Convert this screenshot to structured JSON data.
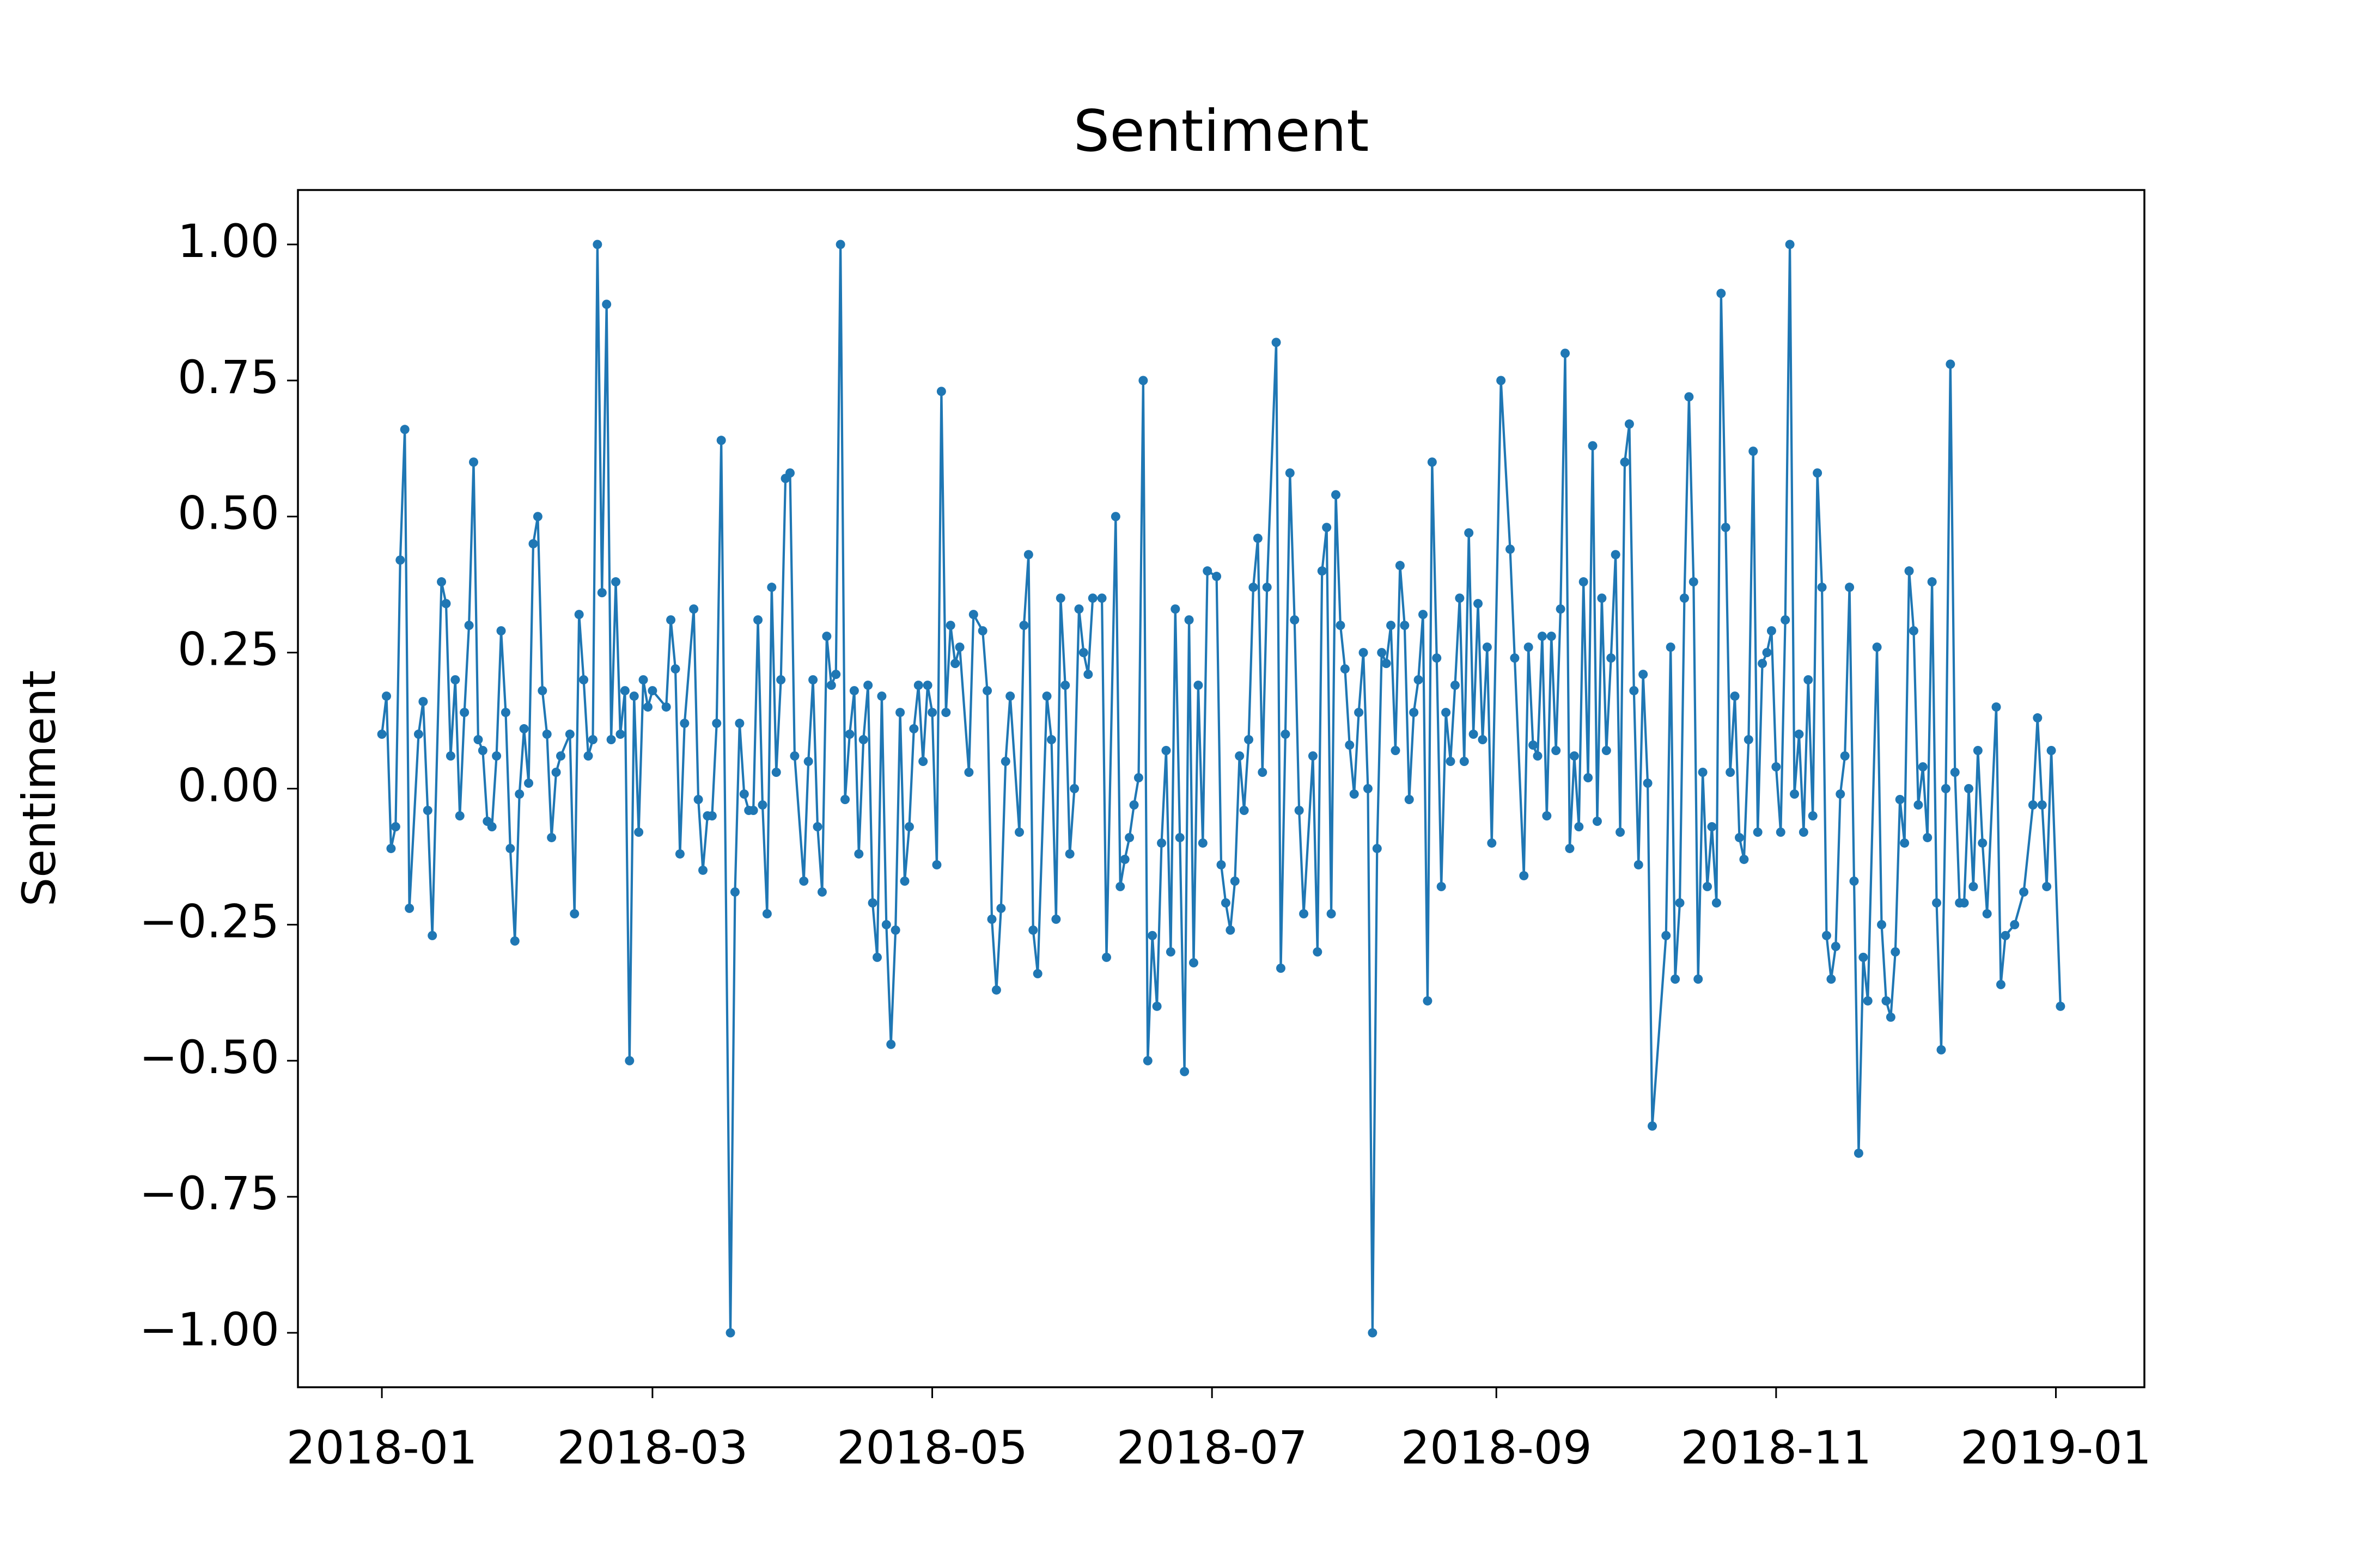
{
  "chart_data": {
    "type": "line",
    "title": "Sentiment",
    "ylabel": "Sentiment",
    "color": "#1f77b4",
    "x": [
      0,
      1,
      2,
      3,
      4,
      5,
      6,
      8,
      9,
      10,
      11,
      13,
      14,
      15,
      16,
      17,
      18,
      19,
      20,
      21,
      22,
      23,
      24,
      25,
      26,
      27,
      28,
      29,
      30,
      31,
      32,
      33,
      34,
      35,
      36,
      37,
      38,
      39,
      41,
      42,
      43,
      44,
      45,
      46,
      47,
      48,
      49,
      50,
      51,
      52,
      53,
      54,
      55,
      56,
      57,
      58,
      59,
      62,
      63,
      64,
      65,
      66,
      68,
      69,
      70,
      71,
      72,
      73,
      74,
      76,
      77,
      78,
      79,
      80,
      81,
      82,
      83,
      84,
      85,
      86,
      87,
      88,
      89,
      90,
      92,
      93,
      94,
      95,
      96,
      97,
      98,
      99,
      100,
      101,
      102,
      103,
      104,
      105,
      106,
      107,
      108,
      109,
      110,
      111,
      112,
      113,
      114,
      115,
      116,
      117,
      118,
      119,
      120,
      121,
      122,
      123,
      124,
      125,
      126,
      128,
      129,
      131,
      132,
      133,
      134,
      135,
      136,
      137,
      139,
      140,
      141,
      142,
      143,
      145,
      146,
      147,
      148,
      149,
      150,
      151,
      152,
      153,
      154,
      155,
      157,
      158,
      160,
      161,
      162,
      163,
      164,
      165,
      166,
      167,
      168,
      169,
      170,
      171,
      172,
      173,
      174,
      175,
      176,
      177,
      178,
      179,
      180,
      182,
      183,
      184,
      185,
      186,
      187,
      188,
      189,
      190,
      191,
      192,
      193,
      195,
      196,
      197,
      198,
      199,
      200,
      201,
      203,
      204,
      205,
      206,
      207,
      208,
      209,
      210,
      211,
      212,
      213,
      214,
      215,
      216,
      217,
      218,
      219,
      220,
      221,
      222,
      223,
      224,
      225,
      226,
      227,
      228,
      229,
      230,
      231,
      232,
      233,
      234,
      235,
      236,
      237,
      238,
      239,
      240,
      241,
      242,
      244,
      246,
      247,
      249,
      250,
      251,
      252,
      253,
      254,
      255,
      256,
      257,
      258,
      259,
      260,
      261,
      262,
      263,
      264,
      265,
      266,
      267,
      268,
      269,
      270,
      271,
      272,
      273,
      274,
      275,
      276,
      277,
      280,
      281,
      282,
      283,
      284,
      285,
      286,
      287,
      288,
      289,
      290,
      291,
      292,
      293,
      294,
      295,
      296,
      297,
      298,
      299,
      300,
      301,
      302,
      303,
      304,
      305,
      306,
      307,
      308,
      309,
      310,
      311,
      312,
      313,
      314,
      315,
      316,
      317,
      318,
      319,
      320,
      321,
      322,
      323,
      324,
      326,
      327,
      328,
      329,
      330,
      331,
      332,
      333,
      334,
      335,
      336,
      337,
      338,
      339,
      340,
      341,
      342,
      343,
      344,
      345,
      346,
      347,
      348,
      349,
      350,
      352,
      353,
      354,
      356,
      358,
      360,
      361,
      362,
      363,
      364,
      366
    ],
    "values": [
      0.1,
      0.17,
      -0.11,
      -0.07,
      0.42,
      0.66,
      -0.22,
      0.1,
      0.16,
      -0.04,
      -0.27,
      0.38,
      0.34,
      0.06,
      0.2,
      -0.05,
      0.14,
      0.3,
      0.6,
      0.09,
      0.07,
      -0.06,
      -0.07,
      0.06,
      0.29,
      0.14,
      -0.11,
      -0.28,
      -0.01,
      0.11,
      0.01,
      0.45,
      0.5,
      0.18,
      0.1,
      -0.09,
      0.03,
      0.06,
      0.1,
      -0.23,
      0.32,
      0.2,
      0.06,
      0.09,
      1.0,
      0.36,
      0.89,
      0.09,
      0.38,
      0.1,
      0.18,
      -0.5,
      0.17,
      -0.08,
      0.2,
      0.15,
      0.18,
      0.15,
      0.31,
      0.22,
      -0.12,
      0.12,
      0.33,
      -0.02,
      -0.15,
      -0.05,
      -0.05,
      0.12,
      0.64,
      -1.0,
      -0.19,
      0.12,
      -0.01,
      -0.04,
      -0.04,
      0.31,
      -0.03,
      -0.23,
      0.37,
      0.03,
      0.2,
      0.57,
      0.58,
      0.06,
      -0.17,
      0.05,
      0.2,
      -0.07,
      -0.19,
      0.28,
      0.19,
      0.21,
      1.0,
      -0.02,
      0.1,
      0.18,
      -0.12,
      0.09,
      0.19,
      -0.21,
      -0.31,
      0.17,
      -0.25,
      -0.47,
      -0.26,
      0.14,
      -0.17,
      -0.07,
      0.11,
      0.19,
      0.05,
      0.19,
      0.14,
      -0.14,
      0.73,
      0.14,
      0.3,
      0.23,
      0.26,
      0.03,
      0.32,
      0.29,
      0.18,
      -0.24,
      -0.37,
      -0.22,
      0.05,
      0.17,
      -0.08,
      0.3,
      0.43,
      -0.26,
      -0.34,
      0.17,
      0.09,
      -0.24,
      0.35,
      0.19,
      -0.12,
      0.0,
      0.33,
      0.25,
      0.21,
      0.35,
      0.35,
      -0.31,
      0.5,
      -0.18,
      -0.13,
      -0.09,
      -0.03,
      0.02,
      0.75,
      -0.5,
      -0.27,
      -0.4,
      -0.1,
      0.07,
      -0.3,
      0.33,
      -0.09,
      -0.52,
      0.31,
      -0.32,
      0.19,
      -0.1,
      0.4,
      0.39,
      -0.14,
      -0.21,
      -0.26,
      -0.17,
      0.06,
      -0.04,
      0.09,
      0.37,
      0.46,
      0.03,
      0.37,
      0.82,
      -0.33,
      0.1,
      0.58,
      0.31,
      -0.04,
      -0.23,
      0.06,
      -0.3,
      0.4,
      0.48,
      -0.23,
      0.54,
      0.3,
      0.22,
      0.08,
      -0.01,
      0.14,
      0.25,
      0.0,
      -1.0,
      -0.11,
      0.25,
      0.23,
      0.3,
      0.07,
      0.41,
      0.3,
      -0.02,
      0.14,
      0.2,
      0.32,
      -0.39,
      0.6,
      0.24,
      -0.18,
      0.14,
      0.05,
      0.19,
      0.35,
      0.05,
      0.47,
      0.1,
      0.34,
      0.09,
      0.26,
      -0.1,
      0.75,
      0.44,
      0.24,
      -0.16,
      0.26,
      0.08,
      0.06,
      0.28,
      -0.05,
      0.28,
      0.07,
      0.33,
      0.8,
      -0.11,
      0.06,
      -0.07,
      0.38,
      0.02,
      0.63,
      -0.06,
      0.35,
      0.07,
      0.24,
      0.43,
      -0.08,
      0.6,
      0.67,
      0.18,
      -0.14,
      0.21,
      0.01,
      -0.62,
      -0.27,
      0.26,
      -0.35,
      -0.21,
      0.35,
      0.72,
      0.38,
      -0.35,
      0.03,
      -0.18,
      -0.07,
      -0.21,
      0.91,
      0.48,
      0.03,
      0.17,
      -0.09,
      -0.13,
      0.09,
      0.62,
      -0.08,
      0.23,
      0.25,
      0.29,
      0.04,
      -0.08,
      0.31,
      1.0,
      -0.01,
      0.1,
      -0.08,
      0.2,
      -0.05,
      0.58,
      0.37,
      -0.27,
      -0.35,
      -0.29,
      -0.01,
      0.06,
      0.37,
      -0.17,
      -0.67,
      -0.31,
      -0.39,
      0.26,
      -0.25,
      -0.39,
      -0.42,
      -0.3,
      -0.02,
      -0.1,
      0.4,
      0.29,
      -0.03,
      0.04,
      -0.09,
      0.38,
      -0.21,
      -0.48,
      0.0,
      0.78,
      0.03,
      -0.21,
      -0.21,
      0.0,
      -0.18,
      0.07,
      -0.1,
      -0.23,
      0.15,
      -0.36,
      -0.27,
      -0.25,
      -0.19,
      -0.03,
      0.13,
      -0.03,
      -0.18,
      0.07,
      -0.4
    ],
    "xlim": [
      -18.3,
      384.3
    ],
    "xticks": [
      {
        "value": 0,
        "label": "2018-01"
      },
      {
        "value": 59,
        "label": "2018-03"
      },
      {
        "value": 120,
        "label": "2018-05"
      },
      {
        "value": 181,
        "label": "2018-07"
      },
      {
        "value": 243,
        "label": "2018-09"
      },
      {
        "value": 304,
        "label": "2018-11"
      },
      {
        "value": 365,
        "label": "2019-01"
      }
    ],
    "ylim": [
      -1.1,
      1.1
    ],
    "yticks": [
      {
        "value": -1,
        "label": "−1.00"
      },
      {
        "value": -0.75,
        "label": "−0.75"
      },
      {
        "value": -0.5,
        "label": "−0.50"
      },
      {
        "value": -0.25,
        "label": "−0.25"
      },
      {
        "value": 0,
        "label": "0.00"
      },
      {
        "value": 0.25,
        "label": "0.25"
      },
      {
        "value": 0.5,
        "label": "0.50"
      },
      {
        "value": 0.75,
        "label": "0.75"
      },
      {
        "value": 1,
        "label": "1.00"
      }
    ]
  }
}
